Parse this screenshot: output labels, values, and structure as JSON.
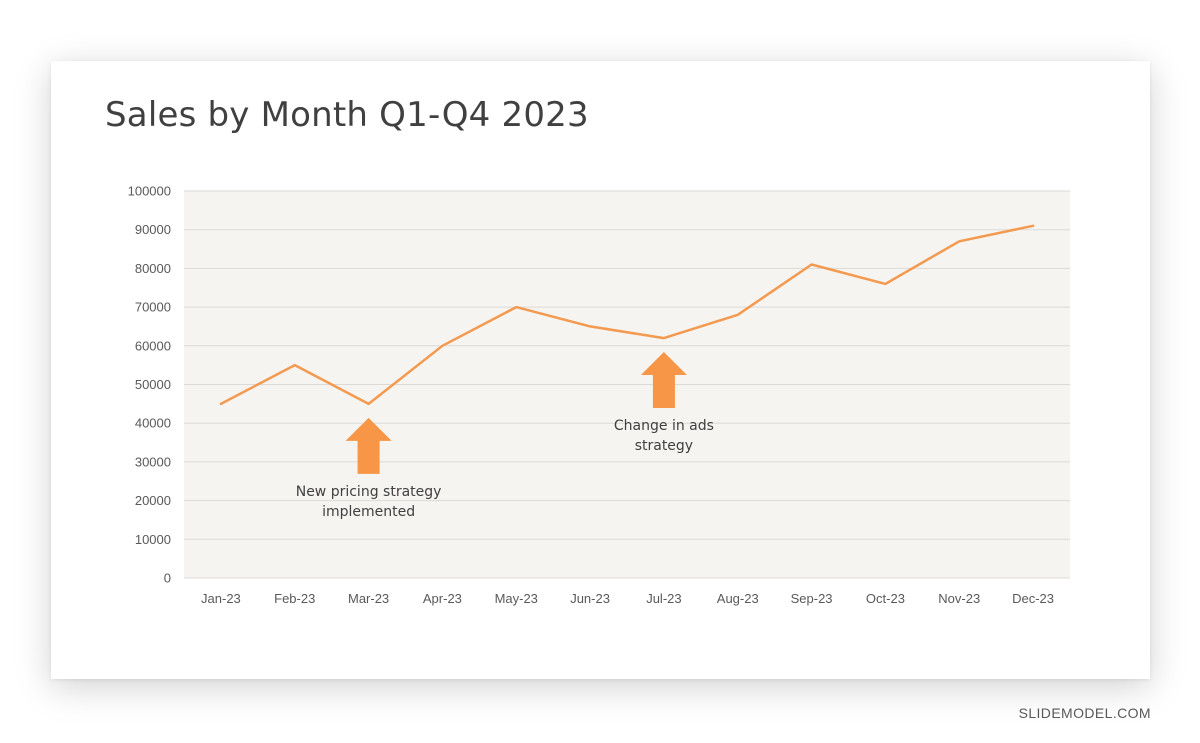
{
  "slide": {
    "title": "Sales by Month Q1-Q4 2023"
  },
  "watermark": "SLIDEMODEL.COM",
  "colors": {
    "line": "#f39a50",
    "arrow": "#f79646",
    "plot_background": "#f5f4f0",
    "gridline": "#dcdad6"
  },
  "chart_data": {
    "type": "line",
    "title": "Sales by Month Q1-Q4 2023",
    "xlabel": "",
    "ylabel": "",
    "categories": [
      "Jan-23",
      "Feb-23",
      "Mar-23",
      "Apr-23",
      "May-23",
      "Jun-23",
      "Jul-23",
      "Aug-23",
      "Sep-23",
      "Oct-23",
      "Nov-23",
      "Dec-23"
    ],
    "values": [
      45000,
      55000,
      45000,
      60000,
      70000,
      65000,
      62000,
      68000,
      81000,
      76000,
      87000,
      91000
    ],
    "ylim": [
      0,
      100000
    ],
    "yticks": [
      "0",
      "10000",
      "20000",
      "30000",
      "40000",
      "50000",
      "60000",
      "70000",
      "80000",
      "90000",
      "100000"
    ],
    "grid": true,
    "legend": "none",
    "annotations": [
      {
        "category": "Mar-23",
        "lines": [
          "New pricing strategy",
          "implemented"
        ],
        "shape": "up-arrow"
      },
      {
        "category": "Jul-23",
        "lines": [
          "Change in ads",
          "strategy"
        ],
        "shape": "up-arrow"
      }
    ]
  }
}
